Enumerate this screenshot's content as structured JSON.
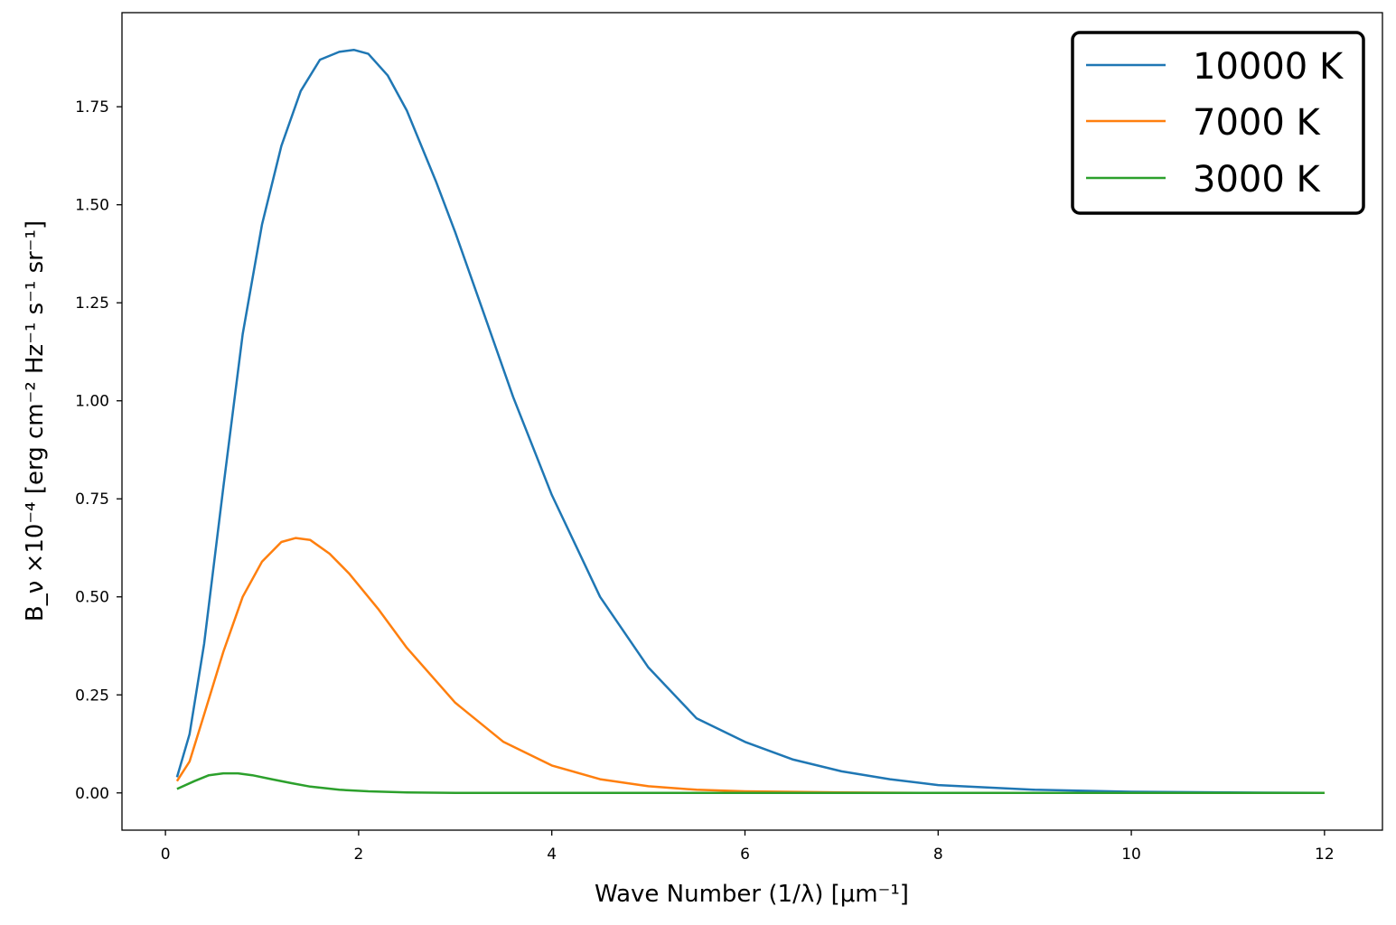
{
  "chart_data": {
    "type": "line",
    "title": "",
    "xlabel": "Wave Number (1/λ) [μm⁻¹]",
    "ylabel": "B_ν ×10⁻⁴ [erg cm⁻² Hz⁻¹ s⁻¹ sr⁻¹]",
    "xlim": [
      -0.45,
      12.6
    ],
    "ylim": [
      -0.095,
      1.99
    ],
    "xticks": [
      0,
      2,
      4,
      6,
      8,
      10,
      12
    ],
    "yticks": [
      0.0,
      0.25,
      0.5,
      0.75,
      1.0,
      1.25,
      1.5,
      1.75
    ],
    "xtick_labels": [
      "0",
      "2",
      "4",
      "6",
      "8",
      "10",
      "12"
    ],
    "ytick_labels": [
      "0.00",
      "0.25",
      "0.50",
      "0.75",
      "1.00",
      "1.25",
      "1.50",
      "1.75"
    ],
    "grid": false,
    "legend_position": "top-right",
    "series": [
      {
        "name": "10000 K",
        "color": "#1f77b4",
        "x": [
          0.12,
          0.25,
          0.4,
          0.6,
          0.8,
          1.0,
          1.2,
          1.4,
          1.6,
          1.8,
          1.95,
          2.1,
          2.3,
          2.5,
          2.8,
          3.0,
          3.3,
          3.6,
          4.0,
          4.5,
          5.0,
          5.5,
          6.0,
          6.5,
          7.0,
          7.5,
          8.0,
          9.0,
          10.0,
          11.0,
          12.0
        ],
        "y": [
          0.04,
          0.15,
          0.38,
          0.78,
          1.17,
          1.45,
          1.65,
          1.79,
          1.87,
          1.89,
          1.895,
          1.885,
          1.83,
          1.74,
          1.56,
          1.43,
          1.22,
          1.01,
          0.76,
          0.5,
          0.32,
          0.19,
          0.13,
          0.085,
          0.055,
          0.035,
          0.02,
          0.008,
          0.003,
          0.001,
          0.0
        ]
      },
      {
        "name": "7000 K",
        "color": "#ff7f0e",
        "x": [
          0.12,
          0.25,
          0.4,
          0.6,
          0.8,
          1.0,
          1.2,
          1.35,
          1.5,
          1.7,
          1.9,
          2.2,
          2.5,
          3.0,
          3.5,
          4.0,
          4.5,
          5.0,
          5.5,
          6.0,
          7.0,
          8.0,
          9.0,
          10.0,
          12.0
        ],
        "y": [
          0.03,
          0.08,
          0.2,
          0.36,
          0.5,
          0.59,
          0.64,
          0.65,
          0.645,
          0.61,
          0.56,
          0.47,
          0.37,
          0.23,
          0.13,
          0.07,
          0.035,
          0.017,
          0.008,
          0.004,
          0.001,
          0.0,
          0.0,
          0.0,
          0.0
        ]
      },
      {
        "name": "3000 K",
        "color": "#2ca02c",
        "x": [
          0.12,
          0.3,
          0.45,
          0.6,
          0.75,
          0.9,
          1.1,
          1.3,
          1.5,
          1.8,
          2.1,
          2.5,
          3.0,
          4.0,
          6.0,
          8.0,
          10.0,
          12.0
        ],
        "y": [
          0.01,
          0.03,
          0.045,
          0.05,
          0.05,
          0.045,
          0.035,
          0.025,
          0.016,
          0.008,
          0.004,
          0.001,
          0.0,
          0.0,
          0.0,
          0.0,
          0.0,
          0.0
        ]
      }
    ]
  }
}
